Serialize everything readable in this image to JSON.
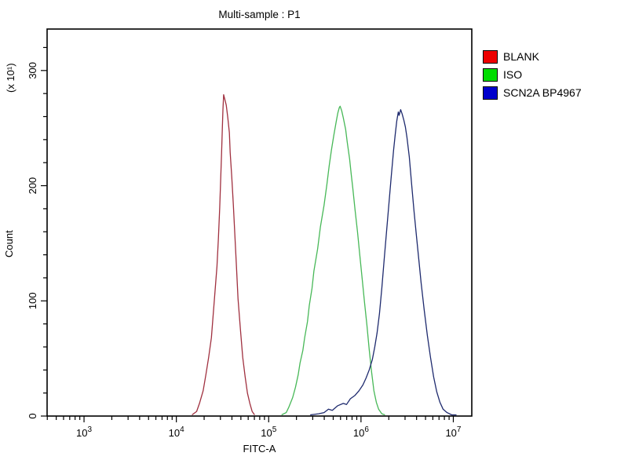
{
  "window": {
    "background": "#ffffff"
  },
  "chart": {
    "title": "Multi-sample : P1",
    "xlabel": "FITC-A",
    "ylabel": "Count",
    "y_unit_label": "(x 10¹)"
  },
  "legend": {
    "items": [
      {
        "label": "BLANK",
        "color": "#ee0000"
      },
      {
        "label": "ISO",
        "color": "#00dd00"
      },
      {
        "label": "SCN2A BP4967",
        "color": "#0000cc"
      }
    ]
  },
  "chart_data": {
    "type": "line",
    "subtype": "flow-cytometry-histogram-overlay",
    "title": "Multi-sample : P1",
    "xlabel": "FITC-A",
    "ylabel": "Count",
    "y_axis_multiplier_label": "(x 10¹)",
    "x_scale": "log10",
    "x_ticks_exponents": [
      3,
      4,
      5,
      6,
      7
    ],
    "x_range_log10": [
      2.6,
      7.2
    ],
    "y_ticks": [
      0,
      100,
      200,
      300
    ],
    "y_minor_tick_step": 20,
    "y_range": [
      0,
      336
    ],
    "grid": false,
    "legend_position": "top-right-outside",
    "axis_color": "#000000",
    "series": [
      {
        "name": "BLANK",
        "legend_color": "#ee0000",
        "line_color": "#a0303f",
        "peak_x_fitc": 32500,
        "peak_count_x10": 279,
        "points_log10x_count": [
          [
            4.17,
            1
          ],
          [
            4.22,
            4
          ],
          [
            4.25,
            11
          ],
          [
            4.29,
            22
          ],
          [
            4.32,
            36
          ],
          [
            4.35,
            51
          ],
          [
            4.38,
            68
          ],
          [
            4.4,
            89
          ],
          [
            4.42,
            109
          ],
          [
            4.44,
            130
          ],
          [
            4.455,
            154
          ],
          [
            4.47,
            181
          ],
          [
            4.48,
            205
          ],
          [
            4.49,
            229
          ],
          [
            4.498,
            249
          ],
          [
            4.505,
            266
          ],
          [
            4.512,
            279
          ],
          [
            4.522,
            276
          ],
          [
            4.54,
            270
          ],
          [
            4.557,
            259
          ],
          [
            4.574,
            246
          ],
          [
            4.583,
            229
          ],
          [
            4.6,
            208
          ],
          [
            4.617,
            184
          ],
          [
            4.634,
            157
          ],
          [
            4.651,
            130
          ],
          [
            4.668,
            102
          ],
          [
            4.694,
            75
          ],
          [
            4.719,
            51
          ],
          [
            4.745,
            34
          ],
          [
            4.77,
            20
          ],
          [
            4.796,
            11
          ],
          [
            4.821,
            4
          ],
          [
            4.847,
            1
          ]
        ]
      },
      {
        "name": "ISO",
        "legend_color": "#00dd00",
        "line_color": "#47b857",
        "peak_x_fitc": 594000,
        "peak_count_x10": 269,
        "points_log10x_count": [
          [
            5.14,
            1
          ],
          [
            5.19,
            3
          ],
          [
            5.22,
            8
          ],
          [
            5.26,
            16
          ],
          [
            5.29,
            25
          ],
          [
            5.32,
            36
          ],
          [
            5.34,
            46
          ],
          [
            5.37,
            57
          ],
          [
            5.39,
            68
          ],
          [
            5.42,
            82
          ],
          [
            5.44,
            96
          ],
          [
            5.47,
            111
          ],
          [
            5.49,
            126
          ],
          [
            5.53,
            145
          ],
          [
            5.56,
            164
          ],
          [
            5.6,
            183
          ],
          [
            5.63,
            201
          ],
          [
            5.655,
            217
          ],
          [
            5.68,
            231
          ],
          [
            5.706,
            244
          ],
          [
            5.732,
            256
          ],
          [
            5.749,
            263
          ],
          [
            5.766,
            268
          ],
          [
            5.774,
            269
          ],
          [
            5.791,
            265
          ],
          [
            5.808,
            259
          ],
          [
            5.834,
            249
          ],
          [
            5.851,
            238
          ],
          [
            5.877,
            223
          ],
          [
            5.894,
            210
          ],
          [
            5.911,
            198
          ],
          [
            5.936,
            179
          ],
          [
            5.962,
            160
          ],
          [
            5.987,
            140
          ],
          [
            6.013,
            119
          ],
          [
            6.038,
            99
          ],
          [
            6.064,
            79
          ],
          [
            6.089,
            58
          ],
          [
            6.115,
            38
          ],
          [
            6.14,
            22
          ],
          [
            6.166,
            12
          ],
          [
            6.191,
            6
          ],
          [
            6.226,
            2
          ],
          [
            6.26,
            1
          ]
        ]
      },
      {
        "name": "SCN2A BP4967",
        "legend_color": "#0000cc",
        "line_color": "#1e2a6e",
        "peak_x_fitc": 2690000,
        "peak_count_x10": 266,
        "points_log10x_count": [
          [
            5.45,
            1
          ],
          [
            5.54,
            2
          ],
          [
            5.6,
            3
          ],
          [
            5.647,
            6
          ],
          [
            5.689,
            5
          ],
          [
            5.749,
            9
          ],
          [
            5.808,
            11
          ],
          [
            5.843,
            10
          ],
          [
            5.885,
            15
          ],
          [
            5.936,
            18
          ],
          [
            5.979,
            22
          ],
          [
            6.021,
            27
          ],
          [
            6.055,
            33
          ],
          [
            6.089,
            40
          ],
          [
            6.123,
            49
          ],
          [
            6.149,
            60
          ],
          [
            6.174,
            72
          ],
          [
            6.2,
            89
          ],
          [
            6.226,
            111
          ],
          [
            6.251,
            136
          ],
          [
            6.277,
            160
          ],
          [
            6.302,
            184
          ],
          [
            6.328,
            208
          ],
          [
            6.353,
            231
          ],
          [
            6.37,
            244
          ],
          [
            6.387,
            256
          ],
          [
            6.404,
            264
          ],
          [
            6.413,
            261
          ],
          [
            6.43,
            266
          ],
          [
            6.447,
            262
          ],
          [
            6.464,
            257
          ],
          [
            6.481,
            251
          ],
          [
            6.498,
            242
          ],
          [
            6.523,
            225
          ],
          [
            6.549,
            201
          ],
          [
            6.574,
            178
          ],
          [
            6.6,
            157
          ],
          [
            6.626,
            136
          ],
          [
            6.651,
            116
          ],
          [
            6.685,
            92
          ],
          [
            6.719,
            70
          ],
          [
            6.753,
            51
          ],
          [
            6.787,
            34
          ],
          [
            6.821,
            21
          ],
          [
            6.855,
            12
          ],
          [
            6.889,
            6
          ],
          [
            6.932,
            3
          ],
          [
            6.983,
            1
          ],
          [
            7.034,
            1
          ]
        ]
      }
    ]
  }
}
